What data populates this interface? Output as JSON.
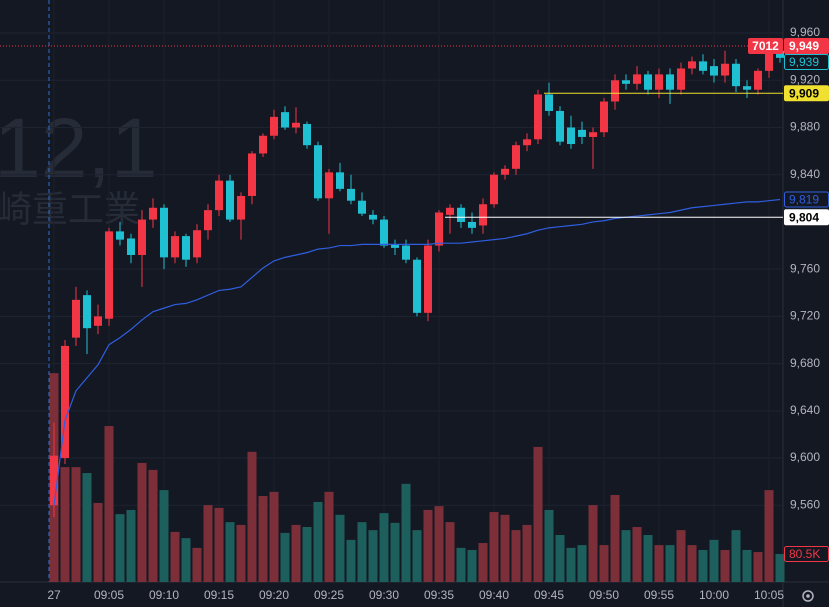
{
  "chart_data": {
    "type": "candlestick",
    "watermark": [
      "12,1",
      "崎重工業"
    ],
    "up_color": "#f23645",
    "down_color": "#1fc0d2",
    "volume_up_color": "#7c2f38",
    "volume_down_color": "#1d5f5c",
    "grid": true,
    "categories": [
      "27",
      null,
      null,
      null,
      null,
      "09:05",
      null,
      null,
      null,
      null,
      "09:10",
      null,
      null,
      null,
      null,
      "09:15",
      null,
      null,
      null,
      null,
      "09:20",
      null,
      null,
      null,
      null,
      "09:25",
      null,
      null,
      null,
      null,
      "09:30",
      null,
      null,
      null,
      null,
      "09:35",
      null,
      null,
      null,
      null,
      "09:40",
      null,
      null,
      null,
      null,
      "09:45",
      null,
      null,
      null,
      null,
      "09:50",
      null,
      null,
      null,
      null,
      "09:55",
      null,
      null,
      null,
      null,
      "10:00",
      null,
      null,
      null,
      null,
      "10:05",
      null
    ],
    "open": [
      9560,
      9600,
      9702,
      9738,
      9712,
      9718,
      9792,
      9786,
      9772,
      9802,
      9812,
      9770,
      9788,
      9770,
      9793,
      9810,
      9835,
      9802,
      9822,
      9858,
      9873,
      9893,
      9880,
      9883,
      9865,
      9820,
      9842,
      9828,
      9818,
      9806,
      9802,
      9781,
      9780,
      9768,
      9723,
      9780,
      9806,
      9812,
      9800,
      9797,
      9815,
      9840,
      9845,
      9865,
      9870,
      9908,
      9894,
      9880,
      9878,
      9872,
      9876,
      9902,
      9920,
      9917,
      9925,
      9912,
      9925,
      9912,
      9930,
      9936,
      9932,
      9924,
      9934,
      9915,
      9912,
      9928,
      9945
    ],
    "high": [
      9630,
      9700,
      9745,
      9742,
      9730,
      9795,
      9800,
      9790,
      9810,
      9820,
      9815,
      9792,
      9790,
      9798,
      9815,
      9840,
      9840,
      9825,
      9860,
      9875,
      9895,
      9898,
      9897,
      9885,
      9868,
      9845,
      9850,
      9840,
      9825,
      9810,
      9805,
      9785,
      9785,
      9770,
      9785,
      9810,
      9815,
      9815,
      9808,
      9820,
      9842,
      9848,
      9868,
      9875,
      9912,
      9918,
      9898,
      9890,
      9885,
      9880,
      9905,
      9925,
      9925,
      9932,
      9928,
      9930,
      9930,
      9935,
      9940,
      9942,
      9938,
      9945,
      9938,
      9920,
      9930,
      9952,
      9950
    ],
    "low": [
      9550,
      9595,
      9695,
      9688,
      9705,
      9712,
      9780,
      9765,
      9745,
      9795,
      9760,
      9765,
      9762,
      9765,
      9785,
      9805,
      9800,
      9785,
      9815,
      9855,
      9870,
      9878,
      9875,
      9862,
      9818,
      9790,
      9826,
      9815,
      9805,
      9798,
      9778,
      9772,
      9765,
      9720,
      9716,
      9775,
      9790,
      9795,
      9790,
      9790,
      9812,
      9836,
      9840,
      9860,
      9866,
      9890,
      9865,
      9862,
      9866,
      9845,
      9872,
      9895,
      9912,
      9912,
      9908,
      9905,
      9900,
      9908,
      9925,
      9925,
      9918,
      9918,
      9910,
      9905,
      9908,
      9922,
      9935
    ],
    "close": [
      9602,
      9695,
      9734,
      9710,
      9720,
      9792,
      9785,
      9772,
      9802,
      9812,
      9770,
      9788,
      9768,
      9793,
      9810,
      9835,
      9802,
      9822,
      9858,
      9873,
      9889,
      9880,
      9884,
      9865,
      9820,
      9842,
      9828,
      9818,
      9807,
      9802,
      9780,
      9778,
      9768,
      9723,
      9780,
      9808,
      9812,
      9800,
      9795,
      9815,
      9840,
      9845,
      9865,
      9870,
      9908,
      9894,
      9868,
      9866,
      9872,
      9876,
      9902,
      9920,
      9917,
      9925,
      9912,
      9925,
      9912,
      9930,
      9936,
      9928,
      9924,
      9934,
      9915,
      9912,
      9928,
      9949,
      9939
    ],
    "volume": [
      600,
      330,
      330,
      313,
      227,
      448,
      195,
      207,
      342,
      322,
      264,
      144,
      126,
      98,
      221,
      213,
      172,
      164,
      374,
      247,
      259,
      141,
      164,
      158,
      230,
      259,
      193,
      121,
      172,
      149,
      198,
      170,
      282,
      149,
      207,
      218,
      172,
      98,
      92,
      112,
      201,
      193,
      149,
      164,
      388,
      207,
      135,
      98,
      106,
      221,
      106,
      250,
      149,
      158,
      135,
      106,
      106,
      149,
      106,
      92,
      121,
      92,
      149,
      92,
      86,
      264,
      80.5
    ],
    "vlim": [
      0,
      1672
    ],
    "ma": {
      "color": "#2f5fe0",
      "values": [
        9560,
        9632,
        9657,
        9668,
        9679,
        9696,
        9702,
        9709,
        9717,
        9724,
        9727,
        9730,
        9731,
        9734,
        9738,
        9742,
        9743,
        9745,
        9753,
        9761,
        9767,
        9770,
        9772,
        9774,
        9777,
        9778,
        9780,
        9780,
        9781,
        9781,
        9781,
        9781,
        9781,
        9781,
        9781,
        9782,
        9782,
        9782,
        9783,
        9784,
        9785,
        9786,
        9788,
        9790,
        9793,
        9795,
        9796,
        9797,
        9798,
        9800,
        9801,
        9803,
        9804,
        9805,
        9806,
        9807,
        9808,
        9810,
        9812,
        9813,
        9814,
        9815,
        9816,
        9817,
        9817,
        9818,
        9819
      ]
    },
    "ylim": [
      9495,
      9988
    ],
    "yticks": [
      {
        "value": 9960,
        "label": "9,960"
      },
      {
        "value": 9920,
        "label": "9,920"
      },
      {
        "value": 9880,
        "label": "9,880"
      },
      {
        "value": 9840,
        "label": "9,840"
      },
      {
        "value": 9760,
        "label": "9,760"
      },
      {
        "value": 9720,
        "label": "9,720"
      },
      {
        "value": 9680,
        "label": "9,680"
      },
      {
        "value": 9640,
        "label": "9,640"
      },
      {
        "value": 9600,
        "label": "9,600"
      },
      {
        "value": 9560,
        "label": "9,560"
      }
    ],
    "levels": [
      {
        "value": 9949,
        "color": "#f23645",
        "dotted": true,
        "start_index": 0
      },
      {
        "value": 9909,
        "color": "#f0e030",
        "dotted": false,
        "start_index": 45
      },
      {
        "value": 9804,
        "color": "#ffffff",
        "dotted": false,
        "start_index": 36
      }
    ],
    "price_tags": [
      {
        "value": 9949,
        "label": "9,949",
        "countdown": "7012",
        "style": "fill",
        "color": "#f23645",
        "text_color": "#ffffff"
      },
      {
        "value": 9939,
        "label": "9,939",
        "style": "outline",
        "color": "#1fc0d2"
      },
      {
        "value": 9909,
        "label": "9,909",
        "style": "fill",
        "color": "#f0e030",
        "text_color": "#000000"
      },
      {
        "value": 9819,
        "label": "9,819",
        "style": "outline",
        "color": "#2f5fe0"
      },
      {
        "value": 9804,
        "label": "9,804",
        "style": "fill",
        "color": "#ffffff",
        "text_color": "#000000"
      }
    ],
    "volume_tag": {
      "value": 80.5,
      "label": "80.5K",
      "color": "#f23645"
    }
  }
}
